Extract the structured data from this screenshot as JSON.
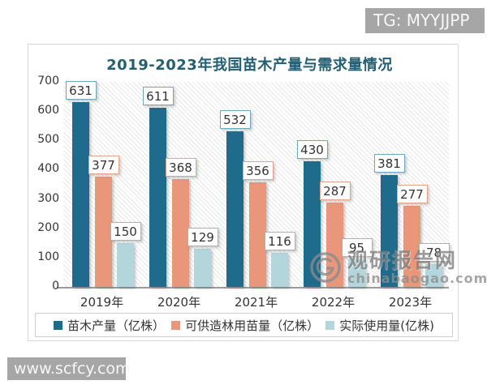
{
  "badges": {
    "tg": "TG: MYYJJPP",
    "site": "www.scfcy.com"
  },
  "watermark": {
    "name": "观研报告网",
    "domain": "chinabaogao.com"
  },
  "chart_data": {
    "type": "bar",
    "title": "2019-2023年我国苗木产量与需求量情况",
    "categories": [
      "2019年",
      "2020年",
      "2021年",
      "2022年",
      "2023年"
    ],
    "series": [
      {
        "name": "苗木产量（亿株）",
        "color": "#1e6b8c",
        "label_border": "#6fa7bd",
        "values": [
          631,
          611,
          532,
          430,
          381
        ]
      },
      {
        "name": "可供造林用苗量（亿株）",
        "color": "#e9967b",
        "label_border": "#e2a28b",
        "values": [
          377,
          368,
          356,
          287,
          277
        ]
      },
      {
        "name": "实际使用量(亿株)",
        "color": "#b3d6dc",
        "label_border": "#b0b0b0",
        "values": [
          150,
          129,
          116,
          95,
          78
        ]
      }
    ],
    "ylim": [
      0,
      700
    ],
    "yticks": [
      0,
      100,
      200,
      300,
      400,
      500,
      600,
      700
    ],
    "xlabel": "",
    "ylabel": "",
    "grid": false,
    "legend_position": "bottom",
    "plot_background": "diagonal-hatch"
  }
}
